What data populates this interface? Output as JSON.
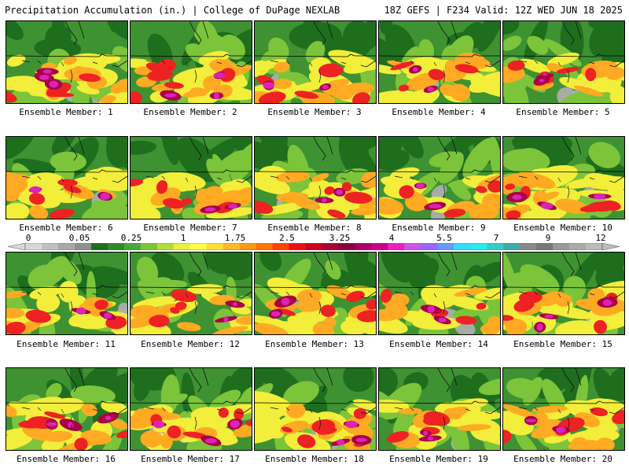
{
  "header": {
    "left_title": "Precipitation Accumulation (in.) | College of DuPage NEXLAB",
    "right_title": "18Z GEFS | F234 Valid: 12Z WED JUN 18 2025"
  },
  "member_label_prefix": "Ensemble Member: ",
  "members": [
    1,
    2,
    3,
    4,
    5,
    6,
    7,
    8,
    9,
    10,
    11,
    12,
    13,
    14,
    15,
    16,
    17,
    18,
    19,
    20
  ],
  "member_intensity": [
    0.85,
    0.95,
    0.8,
    0.65,
    0.55,
    0.5,
    0.75,
    0.8,
    0.6,
    0.95,
    0.6,
    0.65,
    0.7,
    0.55,
    0.85,
    0.85,
    0.9,
    0.95,
    0.6,
    0.8
  ],
  "colorbar": {
    "tick_labels": [
      "0",
      "0.05",
      "0.25",
      "1",
      "1.75",
      "2.5",
      "3.25",
      "4",
      "5.5",
      "7",
      "9",
      "12"
    ],
    "colors": [
      "#d8d8d8",
      "#c0c0c0",
      "#a8a8a8",
      "#909090",
      "#1e6e1e",
      "#2f8a2f",
      "#4aa63a",
      "#7cc43a",
      "#b4dc3a",
      "#e8f03a",
      "#ffff44",
      "#ffdd33",
      "#ffbb22",
      "#ff9911",
      "#ff7700",
      "#ff4400",
      "#ee1111",
      "#cc0022",
      "#aa0033",
      "#880044",
      "#aa0066",
      "#cc0088",
      "#ee22bb",
      "#cc55ee",
      "#9966ff",
      "#6699ff",
      "#33ddff",
      "#22eeee",
      "#33cccc",
      "#44aaaa",
      "#888888",
      "#777777",
      "#999999",
      "#aaaaaa",
      "#bbbbbb"
    ]
  }
}
